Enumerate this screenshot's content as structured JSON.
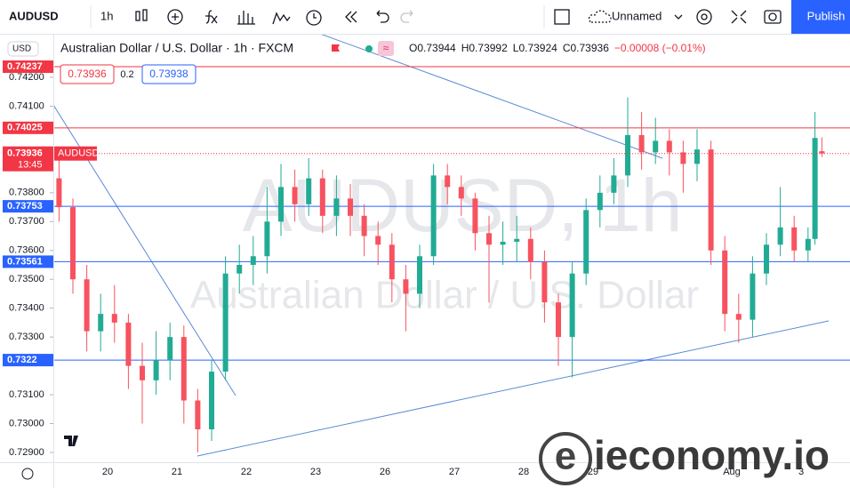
{
  "ui": {
    "symbol": "AUDUSD",
    "interval": "1h",
    "layout_name": "Unnamed",
    "publish": "Publish",
    "currency": "USD",
    "sell_price": "0.73936",
    "spread": "0.2",
    "buy_price": "0.73938",
    "watermark_symbol": "AUDUSD, 1h",
    "watermark_name": "Australian Dollar / U.S. Dollar",
    "logo": "ieconomy.io",
    "countdown": "13:45",
    "price_tag": "AUDUSD"
  },
  "chart_data": {
    "type": "candlestick",
    "title": "Australian Dollar / U.S. Dollar · 1h · FXCM",
    "legend": [
      "O0.73944",
      "H0.73992",
      "L0.73924",
      "C0.73936",
      "−0.00008 (−0.01%)"
    ],
    "x": [
      0.3,
      0.5,
      0.7,
      0.9,
      1.1,
      1.3,
      1.5,
      1.7,
      1.9,
      2.1,
      2.3,
      2.5,
      2.7,
      2.9,
      3.1,
      3.3,
      3.5,
      3.7,
      3.9,
      4.1,
      4.3,
      4.5,
      4.7,
      4.9,
      5.1,
      5.3,
      5.5,
      5.7,
      5.9,
      6.1,
      6.3,
      6.5,
      6.7,
      6.9,
      7.1,
      7.3,
      7.5,
      7.7,
      7.9,
      8.1,
      8.3,
      8.5,
      8.7,
      8.9,
      9.1,
      9.3,
      9.5,
      9.7,
      9.9,
      10.1,
      10.3,
      10.5,
      10.7,
      10.9,
      11.1,
      11.2,
      11.3
    ],
    "open": [
      0.7385,
      0.7375,
      0.735,
      0.7332,
      0.7338,
      0.7335,
      0.732,
      0.7315,
      0.7322,
      0.733,
      0.7308,
      0.7298,
      0.7318,
      0.7352,
      0.7355,
      0.7358,
      0.737,
      0.7382,
      0.7376,
      0.7385,
      0.7372,
      0.7378,
      0.7372,
      0.7365,
      0.7362,
      0.735,
      0.7345,
      0.7358,
      0.7386,
      0.7382,
      0.7378,
      0.7366,
      0.7362,
      0.7363,
      0.7364,
      0.7356,
      0.7342,
      0.733,
      0.7352,
      0.7374,
      0.738,
      0.7386,
      0.74,
      0.7394,
      0.7398,
      0.7394,
      0.739,
      0.7395,
      0.736,
      0.7338,
      0.7336,
      0.7352,
      0.7362,
      0.7368,
      0.736,
      0.7364,
      0.73944
    ],
    "high": [
      0.7392,
      0.7378,
      0.7355,
      0.7345,
      0.7348,
      0.7338,
      0.7328,
      0.7332,
      0.7335,
      0.7334,
      0.7312,
      0.7322,
      0.7358,
      0.7362,
      0.7365,
      0.7382,
      0.739,
      0.7388,
      0.7392,
      0.7388,
      0.7386,
      0.7383,
      0.7376,
      0.737,
      0.7366,
      0.7355,
      0.7362,
      0.739,
      0.739,
      0.7386,
      0.738,
      0.7372,
      0.737,
      0.7372,
      0.7368,
      0.736,
      0.7345,
      0.7356,
      0.7378,
      0.7386,
      0.7392,
      0.7413,
      0.7408,
      0.7406,
      0.7402,
      0.7398,
      0.7402,
      0.7398,
      0.7365,
      0.7345,
      0.7358,
      0.7366,
      0.7382,
      0.7372,
      0.7368,
      0.7408,
      0.73992
    ],
    "low": [
      0.737,
      0.7345,
      0.7325,
      0.7325,
      0.7328,
      0.7312,
      0.73,
      0.731,
      0.7315,
      0.73,
      0.729,
      0.7294,
      0.7315,
      0.7345,
      0.7348,
      0.7352,
      0.7365,
      0.737,
      0.7372,
      0.7366,
      0.7365,
      0.7365,
      0.7358,
      0.7355,
      0.7342,
      0.7332,
      0.734,
      0.7355,
      0.7376,
      0.7372,
      0.736,
      0.7342,
      0.7355,
      0.7356,
      0.735,
      0.7335,
      0.732,
      0.7316,
      0.7348,
      0.7368,
      0.7376,
      0.7382,
      0.7388,
      0.739,
      0.7386,
      0.738,
      0.7384,
      0.7355,
      0.7332,
      0.7328,
      0.733,
      0.7348,
      0.7358,
      0.7356,
      0.7356,
      0.7362,
      0.73924
    ],
    "close": [
      0.7375,
      0.735,
      0.7332,
      0.7338,
      0.7335,
      0.732,
      0.7315,
      0.7322,
      0.733,
      0.7308,
      0.7298,
      0.7318,
      0.7352,
      0.7355,
      0.7358,
      0.737,
      0.7382,
      0.7376,
      0.7385,
      0.7372,
      0.7378,
      0.7372,
      0.7365,
      0.7362,
      0.735,
      0.7345,
      0.7358,
      0.7386,
      0.7382,
      0.7378,
      0.7366,
      0.7362,
      0.7363,
      0.7364,
      0.7356,
      0.7342,
      0.733,
      0.7352,
      0.7374,
      0.738,
      0.7386,
      0.74,
      0.7394,
      0.7398,
      0.7394,
      0.739,
      0.7395,
      0.736,
      0.7338,
      0.7336,
      0.7352,
      0.7362,
      0.7368,
      0.736,
      0.7364,
      0.7399,
      0.73936
    ],
    "up_color": "#22ab94",
    "down_color": "#f7525f",
    "xlim": [
      0.218,
      11.705
    ],
    "xticks": [
      {
        "value": 1,
        "label": "20"
      },
      {
        "value": 2,
        "label": "21"
      },
      {
        "value": 3,
        "label": "22"
      },
      {
        "value": 4,
        "label": "23"
      },
      {
        "value": 5,
        "label": "26"
      },
      {
        "value": 6,
        "label": "27"
      },
      {
        "value": 7,
        "label": "28"
      },
      {
        "value": 8,
        "label": "29"
      },
      {
        "value": 10,
        "label": "Aug"
      },
      {
        "value": 11,
        "label": "3"
      }
    ],
    "ylim": [
      0.72866,
      0.74351
    ],
    "yticks": [
      {
        "value": 0.742,
        "label": "0.74200"
      },
      {
        "value": 0.741,
        "label": "0.74100"
      },
      {
        "value": 0.738,
        "label": "0.73800"
      },
      {
        "value": 0.737,
        "label": "0.73700"
      },
      {
        "value": 0.736,
        "label": "0.73600"
      },
      {
        "value": 0.735,
        "label": "0.73500"
      },
      {
        "value": 0.734,
        "label": "0.73400"
      },
      {
        "value": 0.733,
        "label": "0.73300"
      },
      {
        "value": 0.731,
        "label": "0.73100"
      },
      {
        "value": 0.73,
        "label": "0.73000"
      },
      {
        "value": 0.729,
        "label": "0.72900"
      }
    ],
    "price_lines": [
      {
        "value": 0.74237,
        "color": "#f23645"
      },
      {
        "value": 0.74025,
        "color": "#f23645"
      },
      {
        "value": 0.73753,
        "color": "#2962ff"
      },
      {
        "value": 0.73561,
        "color": "#2962ff"
      },
      {
        "value": 0.7322,
        "color": "#2962ff"
      }
    ],
    "last_price": 0.73936,
    "last_color": "#f23645",
    "grid": false
  }
}
